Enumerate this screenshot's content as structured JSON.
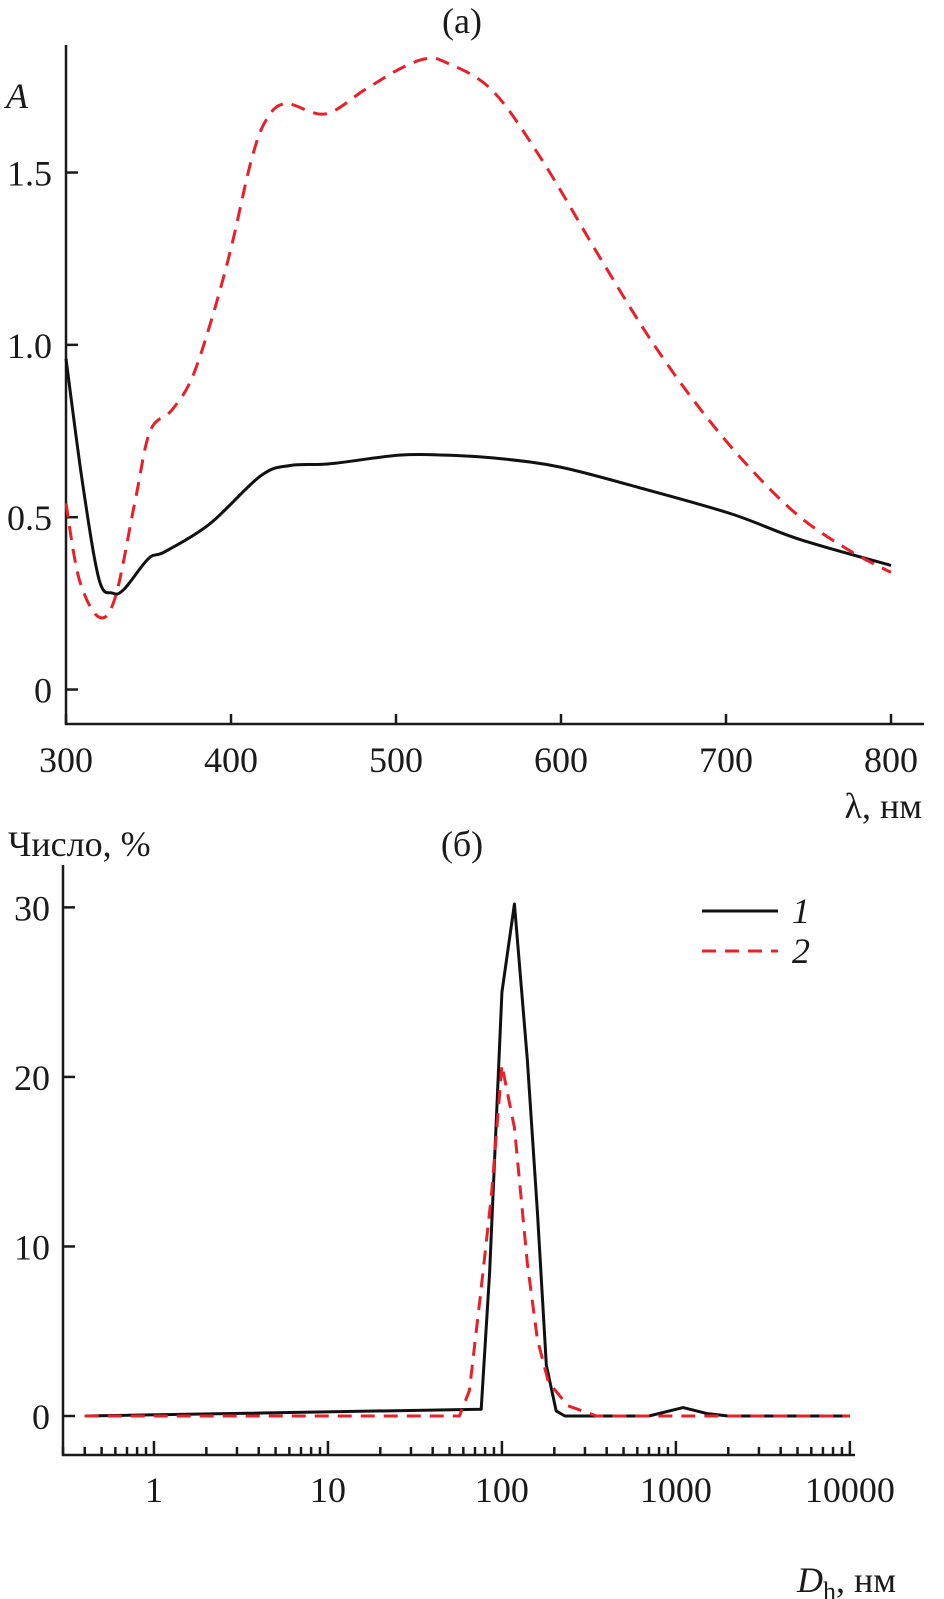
{
  "chart_data": [
    {
      "type": "line",
      "title": "(a)",
      "xlabel": "λ, нм",
      "ylabel": "A",
      "xlim": [
        300,
        820
      ],
      "ylim": [
        -0.1,
        1.87
      ],
      "x_ticks": [
        300,
        400,
        500,
        600,
        700,
        800
      ],
      "x_tick_labels": [
        "300",
        "400",
        "500",
        "600",
        "700",
        "800"
      ],
      "y_ticks": [
        0,
        0.5,
        1.0,
        1.5
      ],
      "y_tick_labels": [
        "0",
        "0.5",
        "1.0",
        "1.5"
      ],
      "grid": false,
      "series": [
        {
          "name": "1",
          "style": "solid",
          "color": "#111111",
          "x": [
            300,
            310,
            320,
            328,
            335,
            350,
            360,
            387,
            418,
            436,
            460,
            502,
            530,
            563,
            600,
            648,
            703,
            745,
            800
          ],
          "y": [
            0.96,
            0.6,
            0.32,
            0.28,
            0.29,
            0.38,
            0.4,
            0.48,
            0.62,
            0.65,
            0.655,
            0.68,
            0.68,
            0.67,
            0.645,
            0.585,
            0.51,
            0.435,
            0.36
          ]
        },
        {
          "name": "2",
          "style": "dashed",
          "color": "#e8202a",
          "x": [
            300,
            308,
            320,
            330,
            342,
            351,
            364,
            376,
            388,
            400,
            412,
            421,
            433,
            457,
            481,
            502,
            518,
            530,
            558,
            588,
            624,
            655,
            685,
            715,
            745,
            776,
            800
          ],
          "y": [
            0.54,
            0.32,
            0.21,
            0.27,
            0.55,
            0.75,
            0.81,
            0.9,
            1.07,
            1.28,
            1.53,
            1.65,
            1.7,
            1.67,
            1.74,
            1.8,
            1.83,
            1.82,
            1.74,
            1.54,
            1.25,
            1.01,
            0.81,
            0.64,
            0.5,
            0.4,
            0.34
          ]
        }
      ]
    },
    {
      "type": "line",
      "title": "(б)",
      "xlabel_main": "D",
      "xlabel_sub": "h",
      "xlabel_unit": ", нм",
      "ylabel": "Число, %",
      "xscale": "log",
      "xlim": [
        0.3,
        10700
      ],
      "ylim": [
        -2.3,
        32.5
      ],
      "x_ticks": [
        1,
        10,
        100,
        1000,
        10000
      ],
      "x_tick_labels": [
        "1",
        "10",
        "100",
        "1000",
        "10000"
      ],
      "y_ticks": [
        0,
        10,
        20,
        30
      ],
      "y_tick_labels": [
        "0",
        "10",
        "20",
        "30"
      ],
      "grid": false,
      "legend": {
        "position": "top-right",
        "entries": [
          "1",
          "2"
        ]
      },
      "series": [
        {
          "name": "1",
          "style": "solid",
          "color": "#111111",
          "x": [
            0.4,
            76,
            85,
            100,
            118,
            140,
            160,
            180,
            205,
            230,
            700,
            1100,
            1500,
            2000,
            10000
          ],
          "y": [
            0,
            0.4,
            8.5,
            25,
            30.2,
            21,
            12,
            3,
            0.3,
            0,
            0,
            0.5,
            0.15,
            0,
            0
          ]
        },
        {
          "name": "2",
          "style": "dashed",
          "color": "#e8202a",
          "x": [
            0.4,
            57,
            65,
            75,
            87,
            100,
            118,
            140,
            160,
            185,
            240,
            350,
            10000
          ],
          "y": [
            0,
            0,
            1.5,
            7,
            13,
            20.7,
            17,
            9,
            4.5,
            2,
            0.6,
            0,
            0
          ]
        }
      ]
    }
  ]
}
